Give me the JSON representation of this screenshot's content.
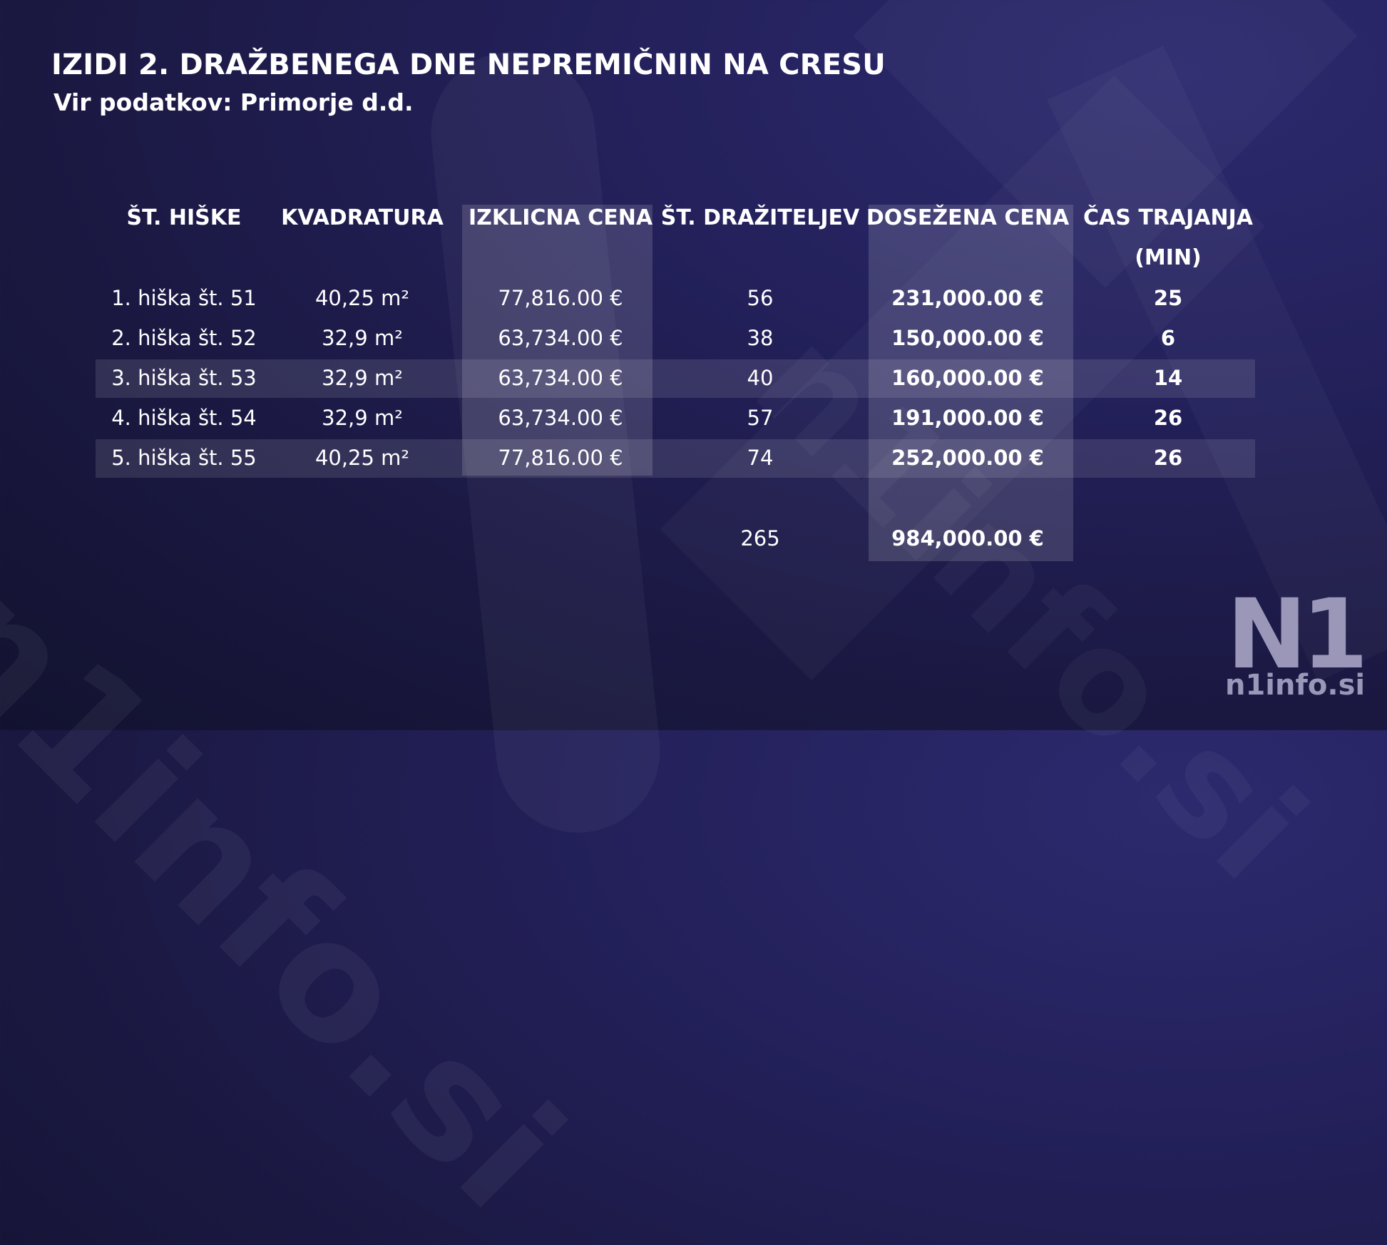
{
  "title": "IZIDI 2. DRAŽBENEGA DNE NEPREMIČNIN NA CRESU",
  "subtitle": "Vir podatkov: Primorje d.d.",
  "chart_data": {
    "type": "table",
    "columns": [
      "ŠT. HIŠKE",
      "KVADRATURA",
      "IZKLICNA CENA",
      "ŠT. DRAŽITELJEV",
      "DOSEŽENA CENA",
      "ČAS TRAJANJA (MIN)"
    ],
    "rows": [
      [
        "1. hiška št. 51",
        "40,25 m²",
        "77,816.00 €",
        "56",
        "231,000.00 €",
        "25"
      ],
      [
        "2. hiška št. 52",
        "32,9 m²",
        "63,734.00 €",
        "38",
        "150,000.00 €",
        "6"
      ],
      [
        "3. hiška št. 53",
        "32,9 m²",
        "63,734.00 €",
        "40",
        "160,000.00 €",
        "14"
      ],
      [
        "4. hiška št. 54",
        "32,9 m²",
        "63,734.00 €",
        "57",
        "191,000.00 €",
        "26"
      ],
      [
        "5. hiška št. 55",
        "40,25 m²",
        "77,816.00 €",
        "74",
        "252,000.00 €",
        "26"
      ]
    ],
    "totals": {
      "bidders": "265",
      "achieved_price": "984,000.00 €"
    }
  },
  "logo": {
    "mark": "N1",
    "site": "n1info.si"
  },
  "colors": {
    "background": "#1e1c4e",
    "text": "#ffffff",
    "logo": "#9b97b8"
  }
}
